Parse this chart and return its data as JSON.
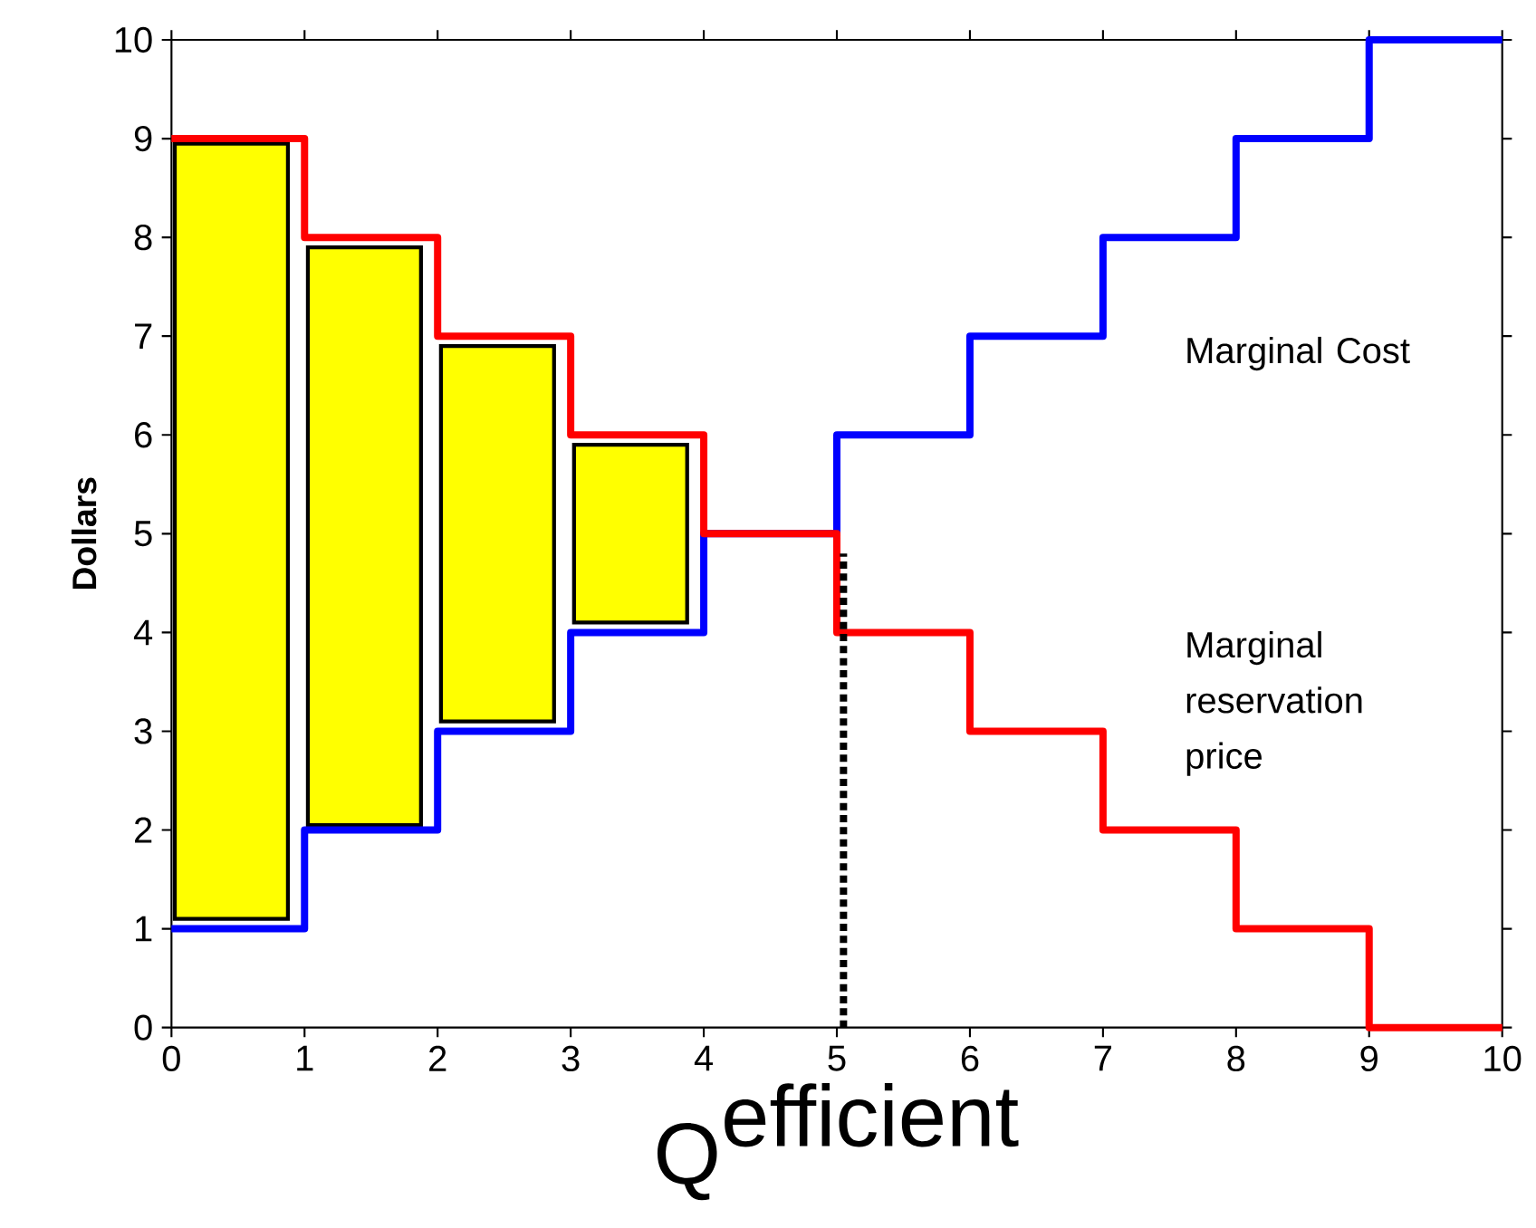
{
  "chart_data": {
    "type": "step",
    "xlabel": "\\textrm{Q}^{\\textrm{efficient}}",
    "ylabel": "Dollars",
    "x": [
      0,
      1,
      2,
      3,
      4,
      5,
      6,
      7,
      8,
      9,
      10
    ],
    "series": [
      {
        "name": "Marginal Cost",
        "color": "#0000ff",
        "values": [
          1,
          2,
          3,
          4,
          5,
          6,
          7,
          8,
          9,
          10,
          10
        ]
      },
      {
        "name": "Marginal reservation price",
        "color": "#ff0000",
        "values": [
          9,
          8,
          7,
          6,
          5,
          4,
          3,
          2,
          1,
          0,
          0
        ]
      },
      {
        "type": "bar",
        "color": "#ffff00",
        "x": [
          0.45,
          1.45,
          2.45,
          3.45
        ],
        "base": [
          1.1,
          2.05,
          3.1,
          4.1
        ],
        "values": [
          7.85,
          5.85,
          3.8,
          1.8
        ]
      }
    ],
    "xlim": [
      0,
      10
    ],
    "ylim": [
      0,
      10
    ],
    "xticks": [
      0,
      1,
      2,
      3,
      4,
      5,
      6,
      7,
      8,
      9,
      10
    ],
    "yticks": [
      0,
      1,
      2,
      3,
      4,
      5,
      6,
      7,
      8,
      9,
      10
    ],
    "ref_lines": [
      {
        "axis": "x",
        "value": 5.05,
        "color": "#000000",
        "line_style": "dotted"
      }
    ],
    "grid": false
  }
}
